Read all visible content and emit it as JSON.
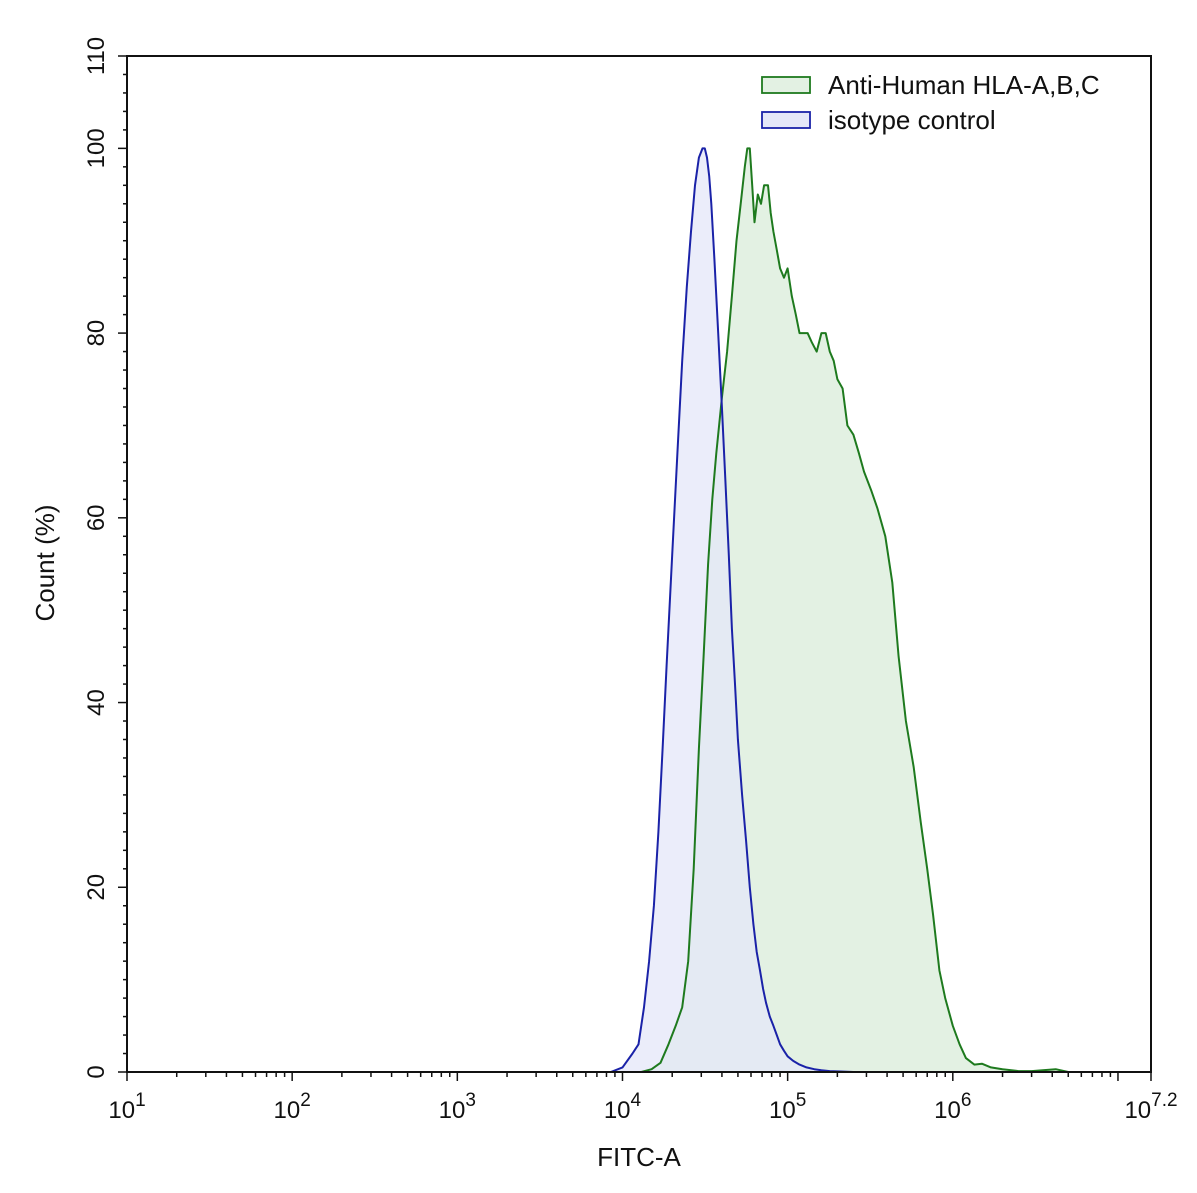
{
  "chart_data": {
    "type": "area",
    "title": "",
    "xlabel": "FITC-A",
    "ylabel": "Count  (%)",
    "x_scale": "log10",
    "xlim": [
      10,
      15848932
    ],
    "ylim": [
      0,
      110
    ],
    "grid": false,
    "legend_position": "top-right",
    "x_ticks": [
      {
        "base": "10",
        "exp": "1",
        "value": 10
      },
      {
        "base": "10",
        "exp": "2",
        "value": 100
      },
      {
        "base": "10",
        "exp": "3",
        "value": 1000
      },
      {
        "base": "10",
        "exp": "4",
        "value": 10000
      },
      {
        "base": "10",
        "exp": "5",
        "value": 100000
      },
      {
        "base": "10",
        "exp": "6",
        "value": 1000000
      },
      {
        "base": "10",
        "exp": "7.2",
        "value": 15848932
      }
    ],
    "y_ticks": [
      "0",
      "20",
      "40",
      "60",
      "80",
      "100",
      "110"
    ],
    "y_tick_values": [
      0,
      20,
      40,
      60,
      80,
      100,
      110
    ],
    "series": [
      {
        "name": "Anti-Human HLA-A,B,C",
        "stroke": "#1e7a1e",
        "fill": "#e3f1e3",
        "x": [
          13000,
          15000,
          17000,
          19000,
          21000,
          23000,
          25000,
          27000,
          29000,
          31000,
          33000,
          35000,
          37000,
          40000,
          43000,
          46000,
          49000,
          52000,
          55000,
          57000,
          59000,
          61000,
          63000,
          66000,
          69000,
          72000,
          76000,
          79000,
          82000,
          86000,
          90000,
          95000,
          100000,
          106000,
          112000,
          118000,
          124000,
          132000,
          140000,
          150000,
          160000,
          170000,
          180000,
          190000,
          200000,
          215000,
          230000,
          250000,
          270000,
          290000,
          320000,
          350000,
          390000,
          430000,
          470000,
          520000,
          580000,
          640000,
          700000,
          760000,
          830000,
          900000,
          1000000,
          1100000,
          1200000,
          1350000,
          1500000,
          1700000,
          2000000,
          2500000,
          3000000,
          3500000,
          4200000,
          5000000
        ],
        "y": [
          0,
          0.3,
          1,
          3,
          5,
          7,
          12,
          22,
          35,
          45,
          55,
          62,
          67,
          73,
          78,
          84,
          90,
          94,
          98,
          100,
          100,
          96,
          92,
          95,
          94,
          96,
          96,
          93,
          91,
          89,
          87,
          86,
          87,
          84,
          82,
          80,
          80,
          80,
          79,
          78,
          80,
          80,
          78,
          77,
          75,
          74,
          70,
          69,
          67,
          65,
          63,
          61,
          58,
          53,
          45,
          38,
          33,
          27,
          22,
          17,
          11,
          8,
          5,
          3,
          1.5,
          0.8,
          0.9,
          0.5,
          0.3,
          0.1,
          0.1,
          0.2,
          0.3,
          0
        ]
      },
      {
        "name": "isotype control",
        "stroke": "#1a22a8",
        "fill": "#e4e7f8",
        "x": [
          8500,
          10000,
          11500,
          12500,
          13500,
          14500,
          15500,
          16500,
          17500,
          18500,
          20000,
          21500,
          23000,
          24500,
          26000,
          27500,
          29000,
          30500,
          31500,
          32500,
          33500,
          34500,
          36000,
          38000,
          40000,
          42000,
          44000,
          46000,
          48000,
          50000,
          53000,
          56000,
          59000,
          62000,
          65000,
          68000,
          71000,
          74000,
          78000,
          82000,
          86000,
          90000,
          95000,
          100000,
          108000,
          118000,
          130000,
          145000,
          160000,
          180000,
          210000,
          250000
        ],
        "y": [
          0,
          0.5,
          2,
          3,
          7,
          12,
          18,
          26,
          35,
          44,
          56,
          67,
          77,
          85,
          91,
          96,
          99,
          100,
          100,
          99,
          97,
          94,
          88,
          80,
          72,
          64,
          56,
          48,
          42,
          36,
          30,
          25,
          20,
          16,
          13,
          11,
          9,
          7.5,
          6,
          5,
          4,
          3,
          2.3,
          1.7,
          1.2,
          0.8,
          0.5,
          0.3,
          0.2,
          0.1,
          0.05,
          0
        ]
      }
    ]
  }
}
